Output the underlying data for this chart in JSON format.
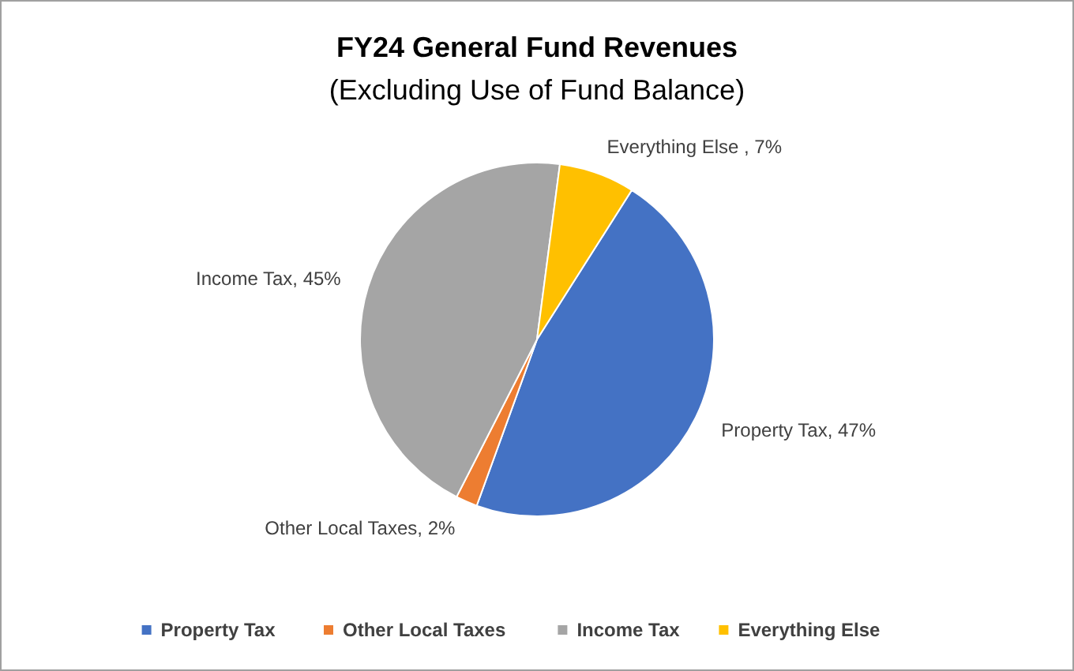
{
  "chart_data": {
    "type": "pie",
    "title": "FY24 General Fund Revenues",
    "subtitle": "(Excluding Use of Fund Balance)",
    "categories": [
      "Property Tax",
      "Other Local Taxes",
      "Income Tax",
      "Everything Else"
    ],
    "values": [
      47,
      2,
      45,
      7
    ],
    "colors": [
      "#4472c4",
      "#ed7d31",
      "#a5a5a5",
      "#ffc000"
    ],
    "value_labels": [
      "Property Tax, 47%",
      "Other Local Taxes, 2%",
      "Income Tax, 45%",
      "Everything Else , 7%"
    ],
    "legend": "bottom"
  }
}
